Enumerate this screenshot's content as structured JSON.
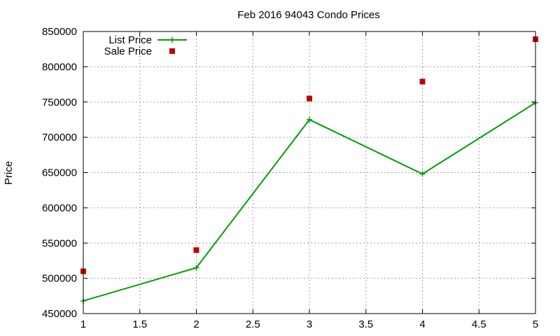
{
  "chart_data": {
    "type": "line",
    "title": "Feb 2016 94043 Condo Prices",
    "xlabel": "",
    "ylabel": "Price",
    "xlim": [
      1,
      5
    ],
    "ylim": [
      450000,
      850000
    ],
    "xticks": [
      1,
      1.5,
      2,
      2.5,
      3,
      3.5,
      4,
      4.5,
      5
    ],
    "xtick_labels": [
      "1",
      "1.5",
      "2",
      "2.5",
      "3",
      "3.5",
      "4",
      "4.5",
      "5"
    ],
    "yticks": [
      450000,
      500000,
      550000,
      600000,
      650000,
      700000,
      750000,
      800000,
      850000
    ],
    "ytick_labels": [
      "450000",
      "500000",
      "550000",
      "600000",
      "650000",
      "700000",
      "750000",
      "800000",
      "850000"
    ],
    "grid": true,
    "legend_position": "top-left",
    "series": [
      {
        "name": "List Price",
        "style": "linespoints",
        "marker": "plus",
        "color": "#00a000",
        "x": [
          1,
          2,
          3,
          4,
          5
        ],
        "values": [
          468000,
          515000,
          725000,
          648000,
          749000
        ]
      },
      {
        "name": "Sale Price",
        "style": "points",
        "marker": "square",
        "color": "#c00000",
        "x": [
          1,
          2,
          3,
          4,
          5
        ],
        "values": [
          510000,
          540000,
          755000,
          779000,
          839000
        ]
      }
    ]
  }
}
